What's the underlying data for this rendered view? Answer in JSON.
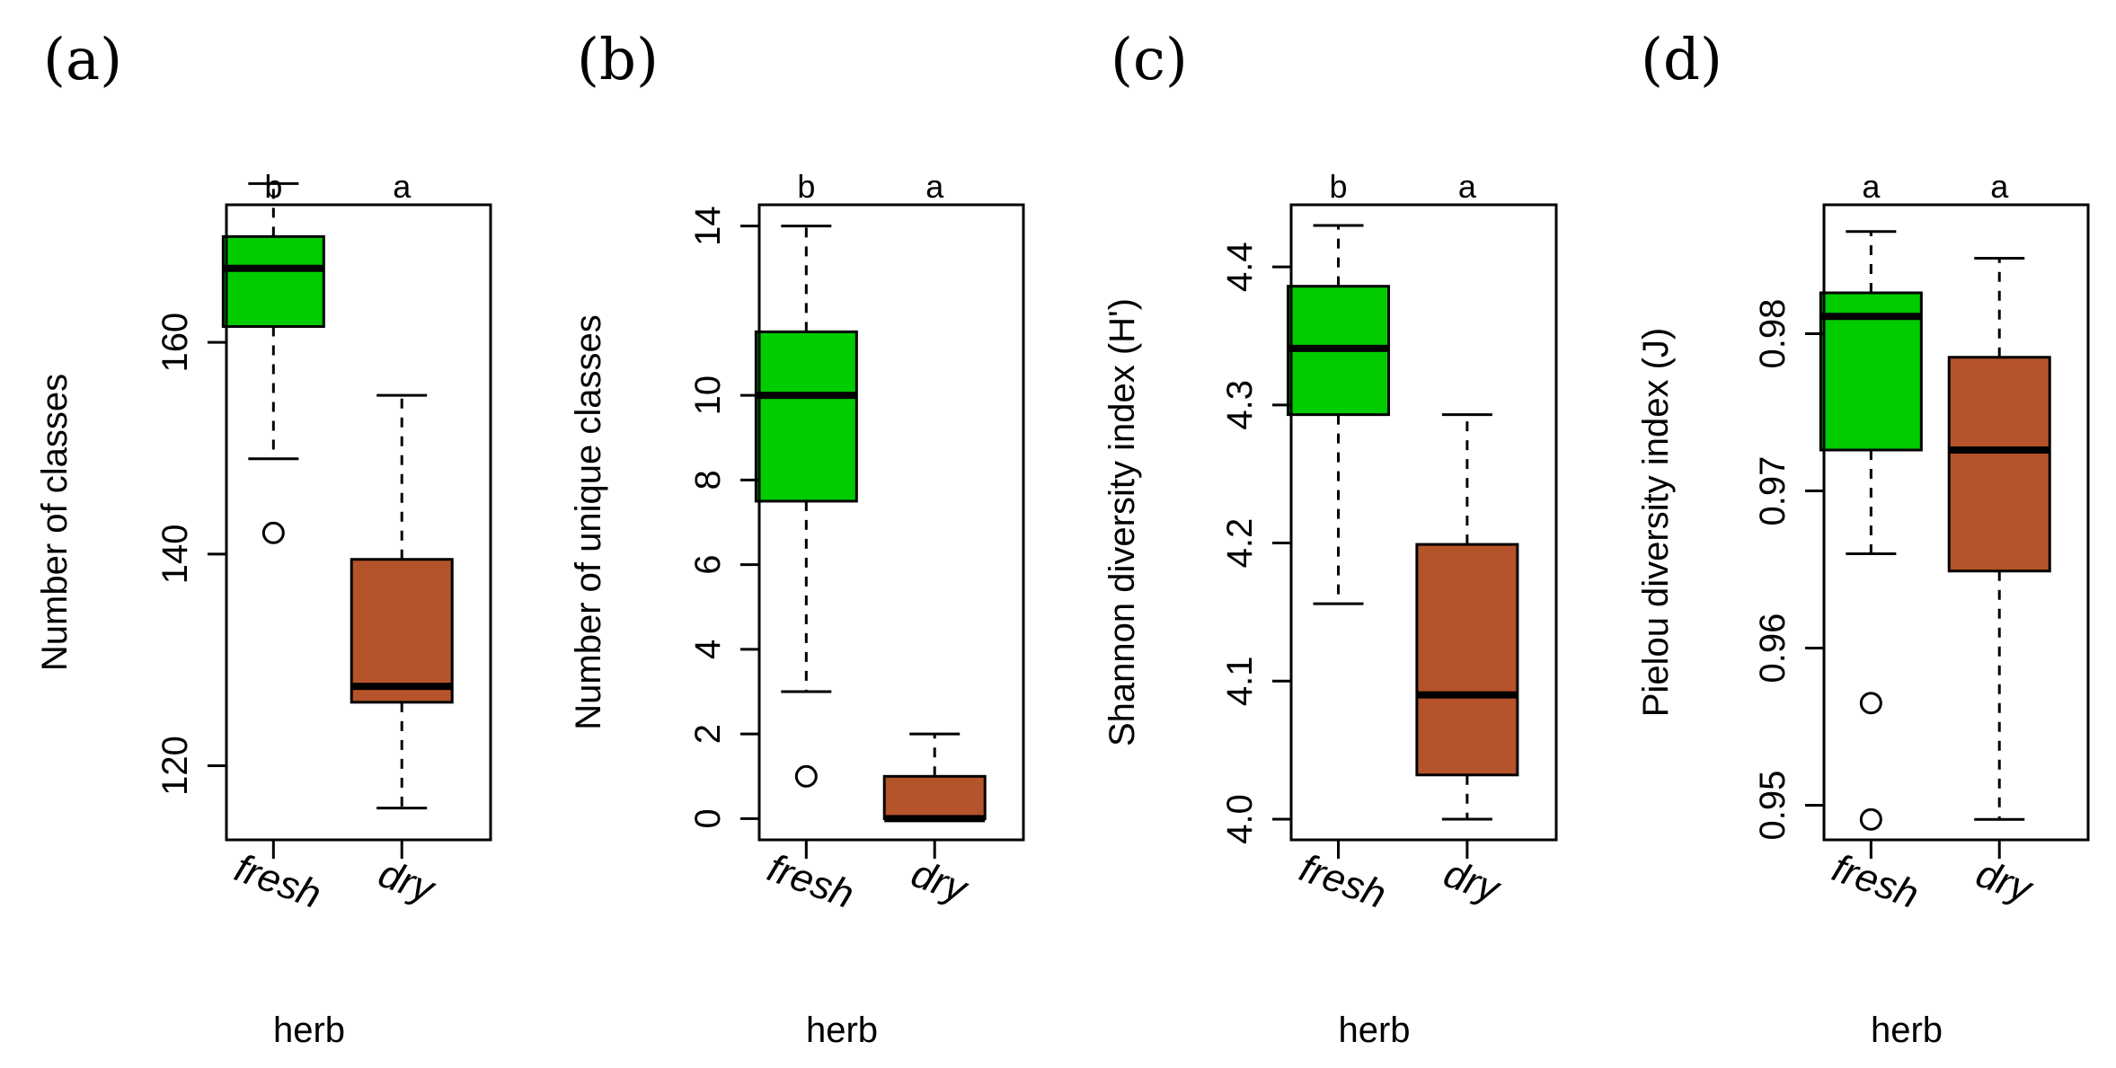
{
  "chart_data": [
    {
      "type": "box",
      "panel_label": "(a)",
      "ylabel": "Number of classes",
      "xlabel": "herb",
      "ylim": [
        113,
        173
      ],
      "yticks": [
        120,
        140,
        160
      ],
      "categories": [
        "fresh",
        "dry"
      ],
      "colors": [
        "#00CC00",
        "#B5532A"
      ],
      "significance": [
        "b",
        "a"
      ],
      "boxes": [
        {
          "whisker_low": 149,
          "q1": 161.5,
          "median": 167,
          "q3": 170,
          "whisker_high": 175,
          "outliers": [
            142
          ]
        },
        {
          "whisker_low": 116,
          "q1": 126,
          "median": 127.5,
          "q3": 139.5,
          "whisker_high": 155,
          "outliers": []
        }
      ]
    },
    {
      "type": "box",
      "panel_label": "(b)",
      "ylabel": "Number of unique classes",
      "xlabel": "herb",
      "ylim": [
        -0.5,
        14.5
      ],
      "yticks": [
        0,
        2,
        4,
        6,
        8,
        10,
        14
      ],
      "categories": [
        "fresh",
        "dry"
      ],
      "colors": [
        "#00CC00",
        "#B5532A"
      ],
      "significance": [
        "b",
        "a"
      ],
      "boxes": [
        {
          "whisker_low": 3,
          "q1": 7.5,
          "median": 10,
          "q3": 11.5,
          "whisker_high": 14,
          "outliers": [
            1
          ]
        },
        {
          "whisker_low": 0,
          "q1": 0,
          "median": 0,
          "q3": 1,
          "whisker_high": 2,
          "outliers": []
        }
      ]
    },
    {
      "type": "box",
      "panel_label": "(c)",
      "ylabel": "Shannon diversity index (H')",
      "xlabel": "herb",
      "ylim": [
        3.985,
        4.445
      ],
      "yticks": [
        4.0,
        4.1,
        4.2,
        4.3,
        4.4
      ],
      "ytick_labels": [
        "4.0",
        "4.1",
        "4.2",
        "4.3",
        "4.4"
      ],
      "categories": [
        "fresh",
        "dry"
      ],
      "colors": [
        "#00CC00",
        "#B5532A"
      ],
      "significance": [
        "b",
        "a"
      ],
      "boxes": [
        {
          "whisker_low": 4.156,
          "q1": 4.293,
          "median": 4.341,
          "q3": 4.386,
          "whisker_high": 4.43,
          "outliers": []
        },
        {
          "whisker_low": 4.0,
          "q1": 4.032,
          "median": 4.09,
          "q3": 4.199,
          "whisker_high": 4.293,
          "outliers": []
        }
      ]
    },
    {
      "type": "box",
      "panel_label": "(d)",
      "ylabel": "Pielou diversity index (J)",
      "xlabel": "herb",
      "ylim": [
        0.9478,
        0.9882
      ],
      "yticks": [
        0.95,
        0.96,
        0.97,
        0.98
      ],
      "ytick_labels": [
        "0.95",
        "0.96",
        "0.97",
        "0.98"
      ],
      "categories": [
        "fresh",
        "dry"
      ],
      "colors": [
        "#00CC00",
        "#B5532A"
      ],
      "significance": [
        "a",
        "a"
      ],
      "boxes": [
        {
          "whisker_low": 0.966,
          "q1": 0.9726,
          "median": 0.9811,
          "q3": 0.9826,
          "whisker_high": 0.9865,
          "outliers": [
            0.9565,
            0.9491
          ]
        },
        {
          "whisker_low": 0.9491,
          "q1": 0.9649,
          "median": 0.9726,
          "q3": 0.9785,
          "whisker_high": 0.9848,
          "outliers": []
        }
      ]
    }
  ]
}
